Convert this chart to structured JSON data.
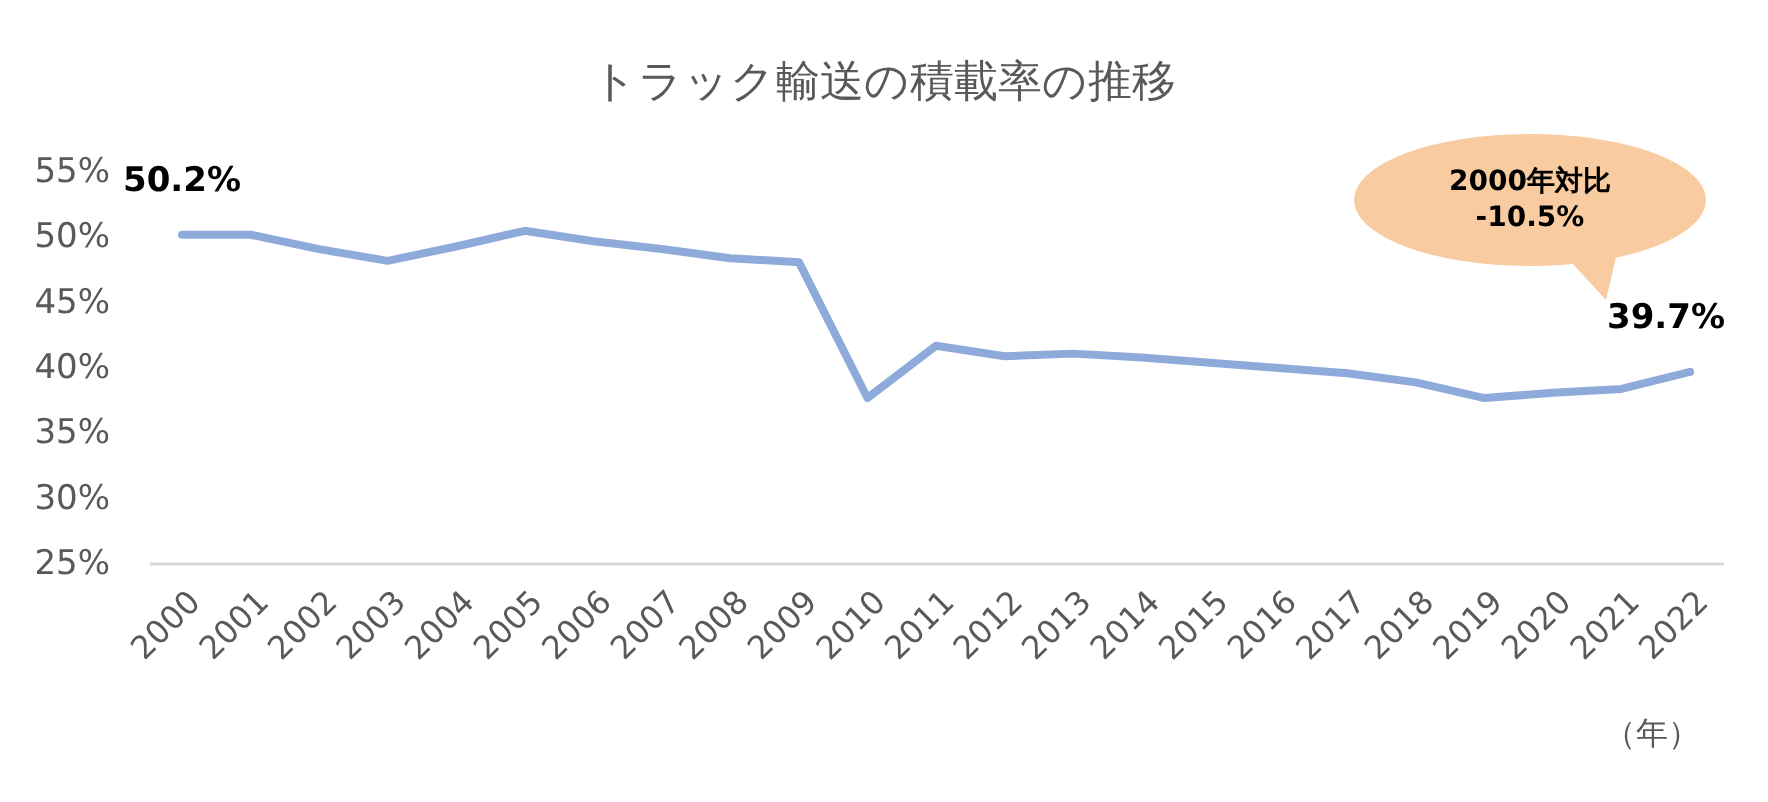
{
  "chart_data": {
    "type": "line",
    "title": "トラック輸送の積載率の推移",
    "xlabel": "（年）",
    "categories": [
      "2000",
      "2001",
      "2002",
      "2003",
      "2004",
      "2005",
      "2006",
      "2007",
      "2008",
      "2009",
      "2010",
      "2011",
      "2012",
      "2013",
      "2014",
      "2015",
      "2016",
      "2017",
      "2018",
      "2019",
      "2020",
      "2021",
      "2022"
    ],
    "series": [
      {
        "color": "#8eaadb",
        "values": [
          50.2,
          50.2,
          49.1,
          48.2,
          49.3,
          50.5,
          49.7,
          49.1,
          48.4,
          48.1,
          37.7,
          41.7,
          40.9,
          41.1,
          40.8,
          40.4,
          40.0,
          39.6,
          38.9,
          37.7,
          38.1,
          38.4,
          39.7
        ],
        "value_labels": [
          "50.2%",
          null,
          null,
          null,
          null,
          null,
          null,
          null,
          null,
          null,
          null,
          null,
          null,
          null,
          null,
          null,
          null,
          null,
          null,
          null,
          null,
          null,
          "39.7%"
        ]
      }
    ],
    "ylim": [
      25,
      55
    ],
    "yticks": [
      {
        "value": 25,
        "label": "25%"
      },
      {
        "value": 30,
        "label": "30%"
      },
      {
        "value": 35,
        "label": "35%"
      },
      {
        "value": 40,
        "label": "40%"
      },
      {
        "value": 45,
        "label": "45%"
      },
      {
        "value": 50,
        "label": "50%"
      },
      {
        "value": 55,
        "label": "55%"
      }
    ],
    "annotations": [
      "2000年対比\n-10.5%"
    ]
  }
}
